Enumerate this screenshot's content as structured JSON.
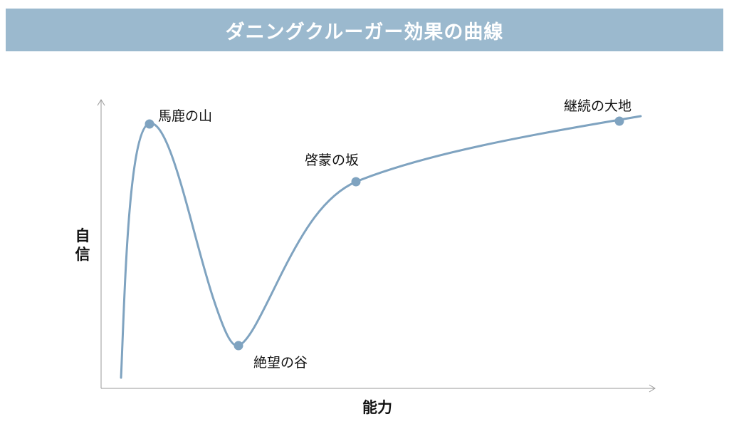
{
  "title": "ダニングクルーガー効果の曲線",
  "y_axis_label": "自信",
  "x_axis_label": "能力",
  "points": [
    {
      "label": "馬鹿の山"
    },
    {
      "label": "絶望の谷"
    },
    {
      "label": "啓蒙の坂"
    },
    {
      "label": "継続の大地"
    }
  ],
  "colors": {
    "title_bar": "#9bb9ce",
    "curve": "#7fa3c0",
    "axis": "#9a9a9a"
  }
}
